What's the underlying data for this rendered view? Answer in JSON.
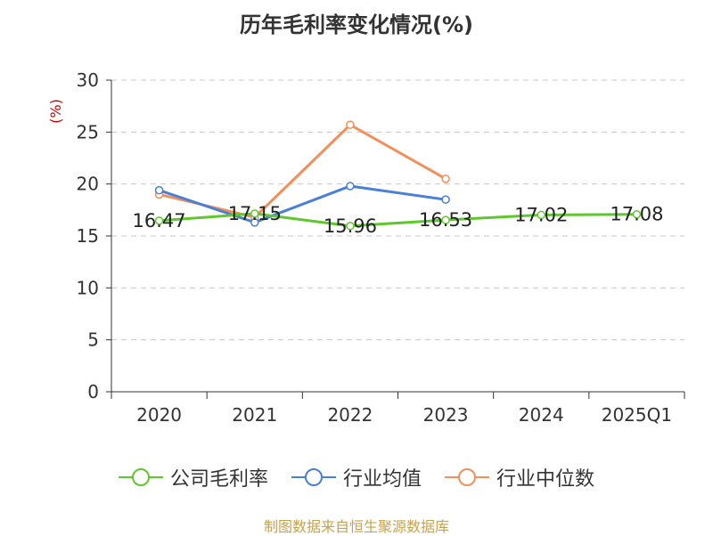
{
  "title": "历年毛利率变化情况(%)",
  "source": "制图数据来自恒生聚源数据库",
  "chart_data": {
    "type": "line",
    "categories": [
      "2020",
      "2021",
      "2022",
      "2023",
      "2024",
      "2025Q1"
    ],
    "ylabel": "(%)",
    "ylim": [
      0,
      30
    ],
    "yticks": [
      0,
      5,
      10,
      15,
      20,
      25,
      30
    ],
    "grid": true,
    "legend_position": "bottom",
    "series": [
      {
        "name": "公司毛利率",
        "color": "#5fc72e",
        "values": [
          16.47,
          17.15,
          15.96,
          16.53,
          17.02,
          17.08
        ],
        "labels": [
          "16.47",
          "17.15",
          "15.96",
          "16.53",
          "17.02",
          "17.08"
        ]
      },
      {
        "name": "行业均值",
        "color": "#4a7fd6",
        "values": [
          19.4,
          16.3,
          19.8,
          18.5,
          null,
          null
        ]
      },
      {
        "name": "行业中位数",
        "color": "#f28f5a",
        "values": [
          19.0,
          16.8,
          25.7,
          20.5,
          null,
          null
        ]
      }
    ]
  }
}
